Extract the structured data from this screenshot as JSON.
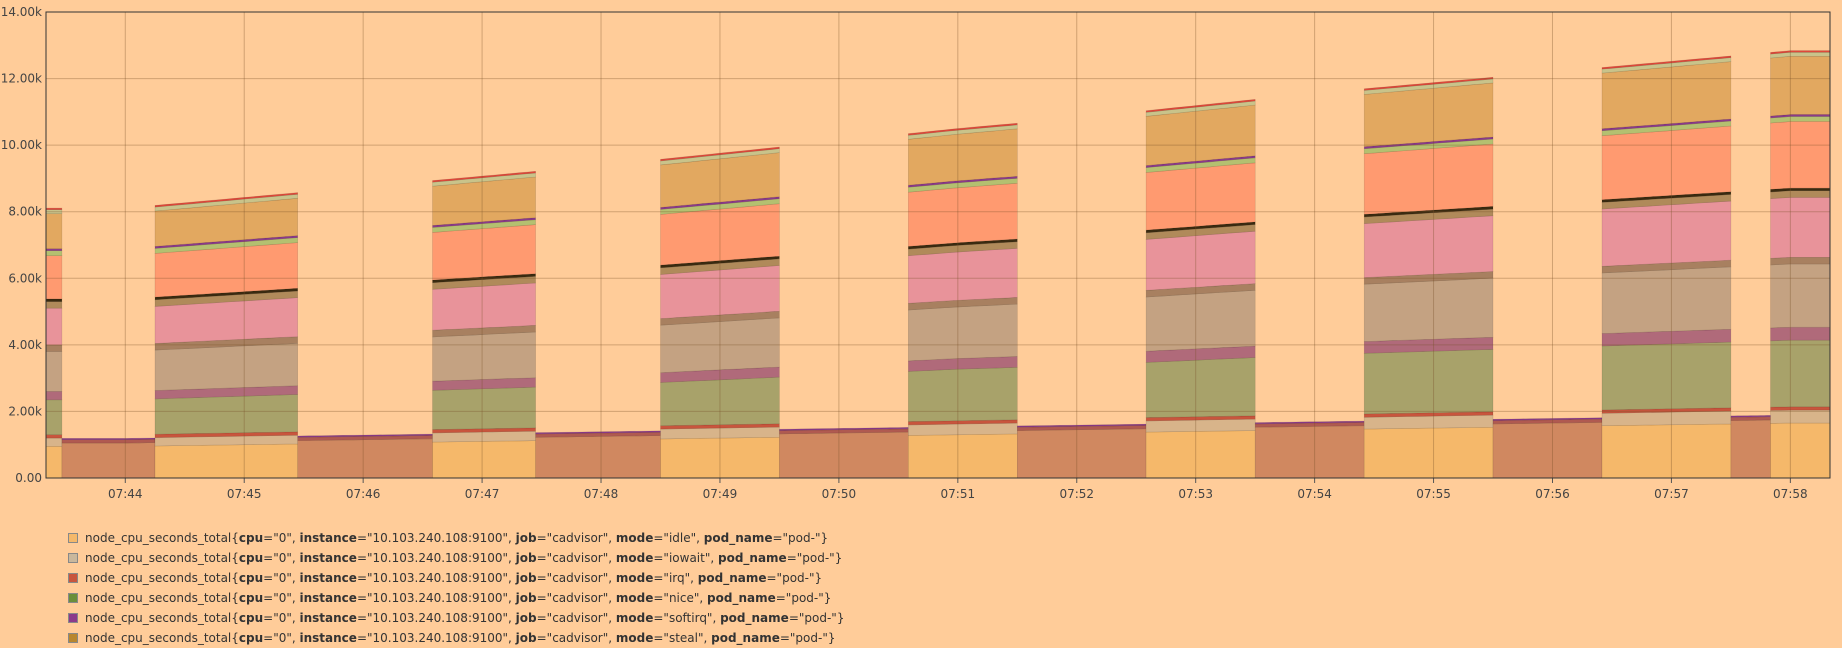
{
  "chart_data": {
    "type": "area",
    "stacked": true,
    "background": "#ffcc99",
    "ylim": [
      0,
      14000
    ],
    "y_ticks": [
      "0.00",
      "2.00k",
      "4.00k",
      "6.00k",
      "8.00k",
      "10.00k",
      "12.00k",
      "14.00k"
    ],
    "y_tick_values": [
      0,
      2000,
      4000,
      6000,
      8000,
      10000,
      12000,
      14000
    ],
    "x_ticks": [
      "07:44",
      "07:45",
      "07:46",
      "07:47",
      "07:48",
      "07:49",
      "07:50",
      "07:51",
      "07:52",
      "07:53",
      "07:54",
      "07:55",
      "07:56",
      "07:57",
      "07:58"
    ],
    "x_start": "07:43:20",
    "x_end": "07:58:20",
    "grid": true,
    "series": [
      {
        "label": "node_cpu_seconds_total{cpu=\"0\", instance=\"10.103.240.108:9100\", job=\"cadvisor\", mode=\"idle\", pod_name=\"pod-\"}",
        "color": "#f5b86a"
      },
      {
        "label": "node_cpu_seconds_total{cpu=\"0\", instance=\"10.103.240.108:9100\", job=\"cadvisor\", mode=\"iowait\", pod_name=\"pod-\"}",
        "color": "#c9b79c"
      },
      {
        "label": "node_cpu_seconds_total{cpu=\"0\", instance=\"10.103.240.108:9100\", job=\"cadvisor\", mode=\"irq\", pod_name=\"pod-\"}",
        "color": "#c8553d"
      },
      {
        "label": "node_cpu_seconds_total{cpu=\"0\", instance=\"10.103.240.108:9100\", job=\"cadvisor\", mode=\"nice\", pod_name=\"pod-\"}",
        "color": "#6b8e3a"
      },
      {
        "label": "node_cpu_seconds_total{cpu=\"0\", instance=\"10.103.240.108:9100\", job=\"cadvisor\", mode=\"softirq\", pod_name=\"pod-\"}",
        "color": "#8b3a8b"
      },
      {
        "label": "node_cpu_seconds_total{cpu=\"0\", instance=\"10.103.240.108:9100\", job=\"cadvisor\", mode=\"steal\", pod_name=\"pod-\"}",
        "color": "#b8862e"
      }
    ],
    "stack_layers": [
      {
        "color": "#f5b86a",
        "values": [
          950,
          1000,
          1050,
          1100,
          1150,
          1200,
          1250,
          1300,
          1350,
          1400,
          1450,
          1500,
          1550,
          1600,
          1650
        ]
      },
      {
        "color": "#d8b48a",
        "values": [
          250,
          260,
          270,
          280,
          290,
          300,
          310,
          320,
          330,
          340,
          350,
          360,
          370,
          380,
          390
        ]
      },
      {
        "color": "#c8553d",
        "values": [
          100,
          100,
          100,
          100,
          100,
          100,
          100,
          100,
          100,
          100,
          100,
          100,
          100,
          100,
          100
        ]
      },
      {
        "color": "#a8a26a",
        "values": [
          1050,
          1100,
          1150,
          1200,
          1250,
          1350,
          1450,
          1550,
          1600,
          1700,
          1800,
          1850,
          1900,
          1950,
          2000
        ]
      },
      {
        "color": "#b06a7a",
        "values": [
          250,
          260,
          270,
          280,
          290,
          300,
          310,
          320,
          330,
          340,
          350,
          360,
          370,
          380,
          390
        ]
      },
      {
        "color": "#c4a282",
        "values": [
          1200,
          1250,
          1300,
          1350,
          1400,
          1450,
          1500,
          1550,
          1600,
          1650,
          1700,
          1750,
          1800,
          1850,
          1900
        ]
      },
      {
        "color": "#a88060",
        "values": [
          200,
          200,
          200,
          200,
          200,
          200,
          200,
          200,
          200,
          200,
          200,
          200,
          200,
          200,
          200
        ]
      },
      {
        "color": "#e8939a",
        "values": [
          1100,
          1150,
          1200,
          1250,
          1300,
          1350,
          1400,
          1450,
          1500,
          1550,
          1600,
          1650,
          1700,
          1750,
          1800
        ]
      },
      {
        "color": "#b08a5a",
        "values": [
          200,
          200,
          200,
          200,
          200,
          200,
          200,
          200,
          200,
          200,
          200,
          200,
          200,
          200,
          200
        ]
      },
      {
        "color": "#3a2a10",
        "values": [
          80,
          80,
          80,
          80,
          80,
          80,
          80,
          80,
          80,
          80,
          80,
          80,
          80,
          80,
          80
        ]
      },
      {
        "color": "#ff9a70",
        "values": [
          1300,
          1350,
          1400,
          1450,
          1500,
          1550,
          1600,
          1650,
          1700,
          1750,
          1800,
          1850,
          1900,
          1950,
          2000
        ]
      },
      {
        "color": "#b4c070",
        "values": [
          150,
          150,
          150,
          150,
          150,
          150,
          150,
          150,
          150,
          150,
          150,
          150,
          150,
          150,
          150
        ]
      },
      {
        "color": "#8b3a8b",
        "values": [
          60,
          60,
          60,
          60,
          60,
          60,
          60,
          60,
          60,
          60,
          60,
          60,
          60,
          60,
          60
        ]
      },
      {
        "color": "#e2a860",
        "values": [
          1050,
          1100,
          1150,
          1200,
          1250,
          1300,
          1350,
          1400,
          1450,
          1500,
          1550,
          1600,
          1650,
          1700,
          1750
        ]
      },
      {
        "color": "#c9c38a",
        "values": [
          120,
          120,
          120,
          120,
          120,
          120,
          120,
          120,
          120,
          120,
          120,
          120,
          120,
          120,
          120
        ]
      },
      {
        "color": "#e0483a",
        "values": [
          50,
          50,
          50,
          50,
          50,
          50,
          50,
          50,
          50,
          50,
          50,
          50,
          50,
          50,
          50
        ]
      }
    ],
    "low_layers": [
      {
        "color": "#d08860",
        "values": [
          1050,
          1100,
          1150,
          1200,
          1250,
          1300,
          1350,
          1400,
          1450,
          1500,
          1550,
          1600,
          1650,
          1700,
          1750
        ]
      },
      {
        "color": "#b05a50",
        "values": [
          100,
          100,
          100,
          100,
          100,
          100,
          100,
          100,
          100,
          100,
          100,
          100,
          100,
          100,
          100
        ]
      },
      {
        "color": "#8b3a8b",
        "values": [
          40,
          40,
          40,
          40,
          40,
          40,
          40,
          40,
          40,
          40,
          40,
          40,
          40,
          40,
          40
        ]
      }
    ],
    "high_periods": [
      [
        "07:43:20",
        "07:43:28"
      ],
      [
        "07:44:15",
        "07:45:27"
      ],
      [
        "07:46:35",
        "07:47:27"
      ],
      [
        "07:48:30",
        "07:49:30"
      ],
      [
        "07:50:35",
        "07:51:30"
      ],
      [
        "07:52:35",
        "07:53:30"
      ],
      [
        "07:54:25",
        "07:55:30"
      ],
      [
        "07:56:25",
        "07:57:30"
      ],
      [
        "07:57:50",
        "07:58:20"
      ]
    ]
  },
  "legend": [
    {
      "prefix": "node_cpu_seconds_total{",
      "cpu_key": "cpu",
      "cpu_val": "=\"0\", ",
      "inst_key": "instance",
      "inst_val": "=\"10.103.240.108:9100\", ",
      "job_key": "job",
      "job_val": "=\"cadvisor\", ",
      "mode_key": "mode",
      "mode_val": "=\"idle\", ",
      "pod_key": "pod_name",
      "pod_val": "=\"pod-\"}",
      "color": "#f5b86a"
    },
    {
      "prefix": "node_cpu_seconds_total{",
      "cpu_key": "cpu",
      "cpu_val": "=\"0\", ",
      "inst_key": "instance",
      "inst_val": "=\"10.103.240.108:9100\", ",
      "job_key": "job",
      "job_val": "=\"cadvisor\", ",
      "mode_key": "mode",
      "mode_val": "=\"iowait\", ",
      "pod_key": "pod_name",
      "pod_val": "=\"pod-\"}",
      "color": "#c9b79c"
    },
    {
      "prefix": "node_cpu_seconds_total{",
      "cpu_key": "cpu",
      "cpu_val": "=\"0\", ",
      "inst_key": "instance",
      "inst_val": "=\"10.103.240.108:9100\", ",
      "job_key": "job",
      "job_val": "=\"cadvisor\", ",
      "mode_key": "mode",
      "mode_val": "=\"irq\", ",
      "pod_key": "pod_name",
      "pod_val": "=\"pod-\"}",
      "color": "#c8553d"
    },
    {
      "prefix": "node_cpu_seconds_total{",
      "cpu_key": "cpu",
      "cpu_val": "=\"0\", ",
      "inst_key": "instance",
      "inst_val": "=\"10.103.240.108:9100\", ",
      "job_key": "job",
      "job_val": "=\"cadvisor\", ",
      "mode_key": "mode",
      "mode_val": "=\"nice\", ",
      "pod_key": "pod_name",
      "pod_val": "=\"pod-\"}",
      "color": "#6b8e3a"
    },
    {
      "prefix": "node_cpu_seconds_total{",
      "cpu_key": "cpu",
      "cpu_val": "=\"0\", ",
      "inst_key": "instance",
      "inst_val": "=\"10.103.240.108:9100\", ",
      "job_key": "job",
      "job_val": "=\"cadvisor\", ",
      "mode_key": "mode",
      "mode_val": "=\"softirq\", ",
      "pod_key": "pod_name",
      "pod_val": "=\"pod-\"}",
      "color": "#8b3a8b"
    },
    {
      "prefix": "node_cpu_seconds_total{",
      "cpu_key": "cpu",
      "cpu_val": "=\"0\", ",
      "inst_key": "instance",
      "inst_val": "=\"10.103.240.108:9100\", ",
      "job_key": "job",
      "job_val": "=\"cadvisor\", ",
      "mode_key": "mode",
      "mode_val": "=\"steal\", ",
      "pod_key": "pod_name",
      "pod_val": "=\"pod-\"}",
      "color": "#b8862e"
    }
  ]
}
